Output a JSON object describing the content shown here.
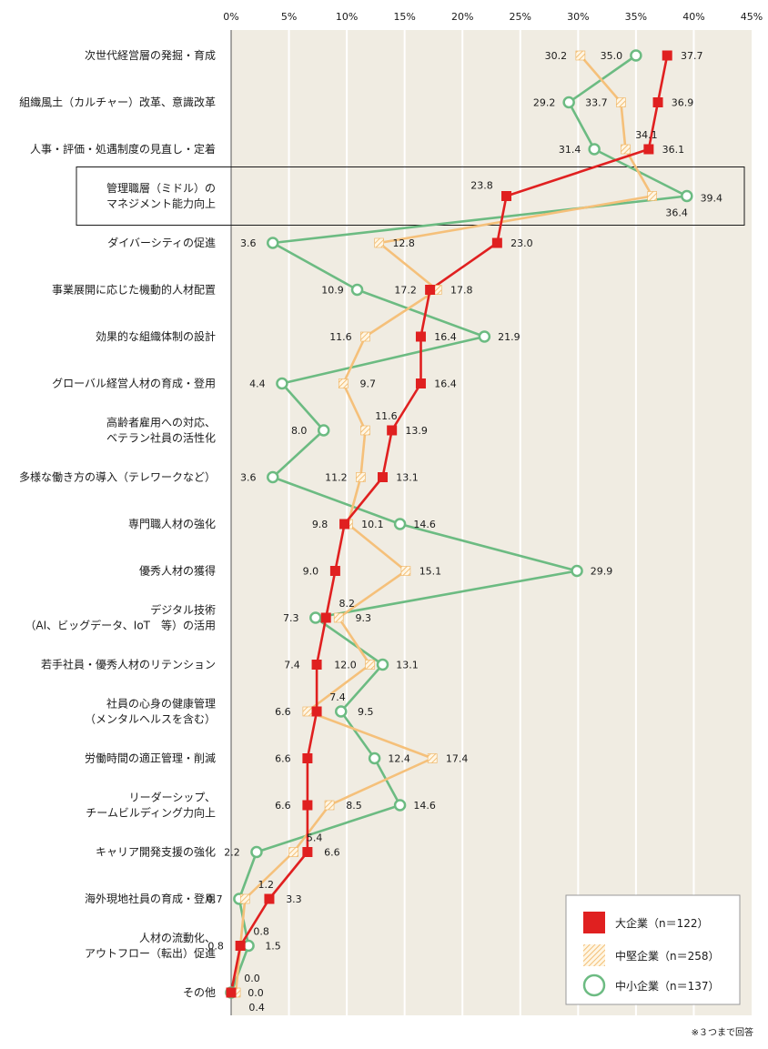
{
  "chart_data": {
    "type": "line",
    "orientation": "horizontal",
    "xlim": [
      0,
      45
    ],
    "x_ticks": [
      "0%",
      "5%",
      "10%",
      "15%",
      "20%",
      "25%",
      "30%",
      "35%",
      "40%",
      "45%"
    ],
    "grid": true,
    "legend_position": "bottom-right",
    "categories": [
      [
        "次世代経営層の発掘・育成"
      ],
      [
        "組織風土（カルチャー）改革、意識改革"
      ],
      [
        "人事・評価・処遇制度の見直し・定着"
      ],
      [
        "管理職層（ミドル）の",
        "マネジメント能力向上"
      ],
      [
        "ダイバーシティの促進"
      ],
      [
        "事業展開に応じた機動的人材配置"
      ],
      [
        "効果的な組織体制の設計"
      ],
      [
        "グローバル経営人材の育成・登用"
      ],
      [
        "高齢者雇用への対応、",
        "ベテラン社員の活性化"
      ],
      [
        "多様な働き方の導入（テレワークなど）"
      ],
      [
        "専門職人材の強化"
      ],
      [
        "優秀人材の獲得"
      ],
      [
        "デジタル技術",
        "（AI、ビッグデータ、IoT　等）の活用"
      ],
      [
        "若手社員・優秀人材のリテンション"
      ],
      [
        "社員の心身の健康管理",
        "（メンタルヘルスを含む）"
      ],
      [
        "労働時間の適正管理・削減"
      ],
      [
        "リーダーシップ、",
        "チームビルディング力向上"
      ],
      [
        "キャリア開発支援の強化"
      ],
      [
        "海外現地社員の育成・登用"
      ],
      [
        "人材の流動化、",
        "アウトフロー（転出）促進"
      ],
      [
        "その他"
      ]
    ],
    "series": [
      {
        "name": "大企業（n＝122）",
        "color": "#e02020",
        "values": [
          37.7,
          36.9,
          36.1,
          23.8,
          23.0,
          17.2,
          16.4,
          16.4,
          13.9,
          13.1,
          9.8,
          9.0,
          8.2,
          7.4,
          7.4,
          6.6,
          6.6,
          6.6,
          3.3,
          0.8,
          0.0
        ]
      },
      {
        "name": "中堅企業（n＝258）",
        "color": "#f5c07a",
        "values": [
          30.2,
          33.7,
          34.1,
          36.4,
          12.8,
          17.8,
          11.6,
          9.7,
          11.6,
          11.2,
          10.1,
          15.1,
          9.3,
          12.0,
          6.6,
          17.4,
          8.5,
          5.4,
          1.2,
          0.8,
          0.4
        ]
      },
      {
        "name": "中小企業（n＝137）",
        "color": "#6cbb82",
        "values": [
          35.0,
          29.2,
          31.4,
          39.4,
          3.6,
          10.9,
          21.9,
          4.4,
          8.0,
          3.6,
          14.6,
          29.9,
          7.3,
          13.1,
          9.5,
          12.4,
          14.6,
          2.2,
          0.7,
          1.5,
          0.0
        ]
      }
    ],
    "value_labels": [
      [
        "37.7",
        "30.2",
        "35.0"
      ],
      [
        "36.9",
        "33.7",
        "29.2"
      ],
      [
        "36.1",
        "34.1",
        "31.4"
      ],
      [
        "23.8",
        "36.4",
        "39.4"
      ],
      [
        "23.0",
        "12.8",
        "3.6"
      ],
      [
        "17.2",
        "17.8",
        "10.9"
      ],
      [
        "16.4",
        "11.6",
        "21.9"
      ],
      [
        "16.4",
        "9.7",
        "4.4"
      ],
      [
        "13.9",
        "11.6",
        "8.0"
      ],
      [
        "13.1",
        "11.2",
        "3.6"
      ],
      [
        "9.8",
        "10.1",
        "14.6"
      ],
      [
        "9.0",
        "15.1",
        "29.9"
      ],
      [
        "8.2",
        "9.3",
        "7.3"
      ],
      [
        "7.4",
        "12.0",
        "13.1"
      ],
      [
        "7.4",
        "6.6",
        "9.5"
      ],
      [
        "6.6",
        "17.4",
        "12.4"
      ],
      [
        "6.6",
        "8.5",
        "14.6"
      ],
      [
        "6.6",
        "5.4",
        "2.2"
      ],
      [
        "3.3",
        "1.2",
        "0.7"
      ],
      [
        "0.8",
        "0.8",
        "1.5"
      ],
      [
        "0.0",
        "0.4",
        "0.0"
      ]
    ],
    "highlighted_category_index": 3,
    "footnote": "※３つまで回答"
  },
  "colors": {
    "plot_background": "#f0ece2",
    "grid": "#ffffff",
    "large": "#e02020",
    "mid": "#f5c07a",
    "small": "#6cbb82"
  }
}
